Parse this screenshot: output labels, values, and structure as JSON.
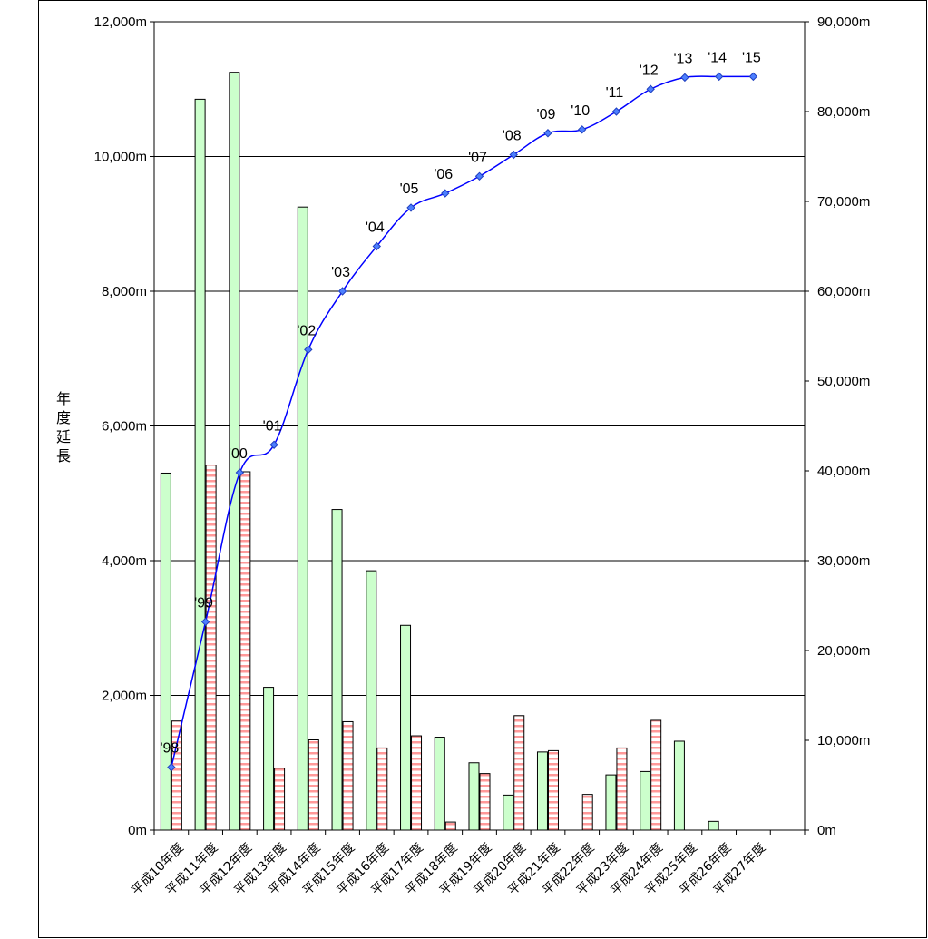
{
  "chart_data": {
    "type": "bar",
    "y_label": "年度延長",
    "categories": [
      "平成10年度",
      "平成11年度",
      "平成12年度",
      "平成13年度",
      "平成14年度",
      "平成15年度",
      "平成16年度",
      "平成17年度",
      "平成18年度",
      "平成19年度",
      "平成20年度",
      "平成21年度",
      "平成22年度",
      "平成23年度",
      "平成24年度",
      "平成25年度",
      "平成26年度",
      "平成27年度"
    ],
    "series": [
      {
        "type": "bar",
        "axis": "left",
        "color": "#ccffcc",
        "values": [
          5300,
          10850,
          11250,
          2120,
          9250,
          4760,
          3850,
          3040,
          1380,
          1000,
          520,
          1160,
          0,
          820,
          870,
          1320,
          130,
          0
        ]
      },
      {
        "type": "bar",
        "axis": "left",
        "pattern": "pink-horizontal-stripes",
        "color": "#ff9999",
        "values": [
          1620,
          5420,
          5320,
          920,
          1340,
          1610,
          1220,
          1400,
          120,
          840,
          1700,
          1180,
          530,
          1220,
          1630,
          0,
          0,
          0
        ]
      },
      {
        "type": "line",
        "axis": "right",
        "color": "#0000ff",
        "marker": "diamond",
        "values": [
          7000,
          23200,
          39800,
          42900,
          53500,
          60000,
          65000,
          69300,
          70900,
          72800,
          75200,
          77600,
          78000,
          80000,
          82500,
          83800,
          83900,
          83900
        ],
        "point_labels": [
          "'98",
          "'99",
          "'00",
          "'01",
          "'02",
          "'03",
          "'04",
          "'05",
          "'06",
          "'07",
          "'08",
          "'09",
          "'10",
          "'11",
          "'12",
          "'13",
          "'14",
          "'15"
        ]
      }
    ],
    "left_axis": {
      "min": 0,
      "max": 12000,
      "ticks": [
        "0m",
        "2,000m",
        "4,000m",
        "6,000m",
        "8,000m",
        "10,000m",
        "12,000m"
      ]
    },
    "right_axis": {
      "min": 0,
      "max": 90000,
      "ticks": [
        "0m",
        "10,000m",
        "20,000m",
        "30,000m",
        "40,000m",
        "50,000m",
        "60,000m",
        "70,000m",
        "80,000m",
        "90,000m"
      ]
    },
    "grid": true,
    "legend": "none"
  }
}
